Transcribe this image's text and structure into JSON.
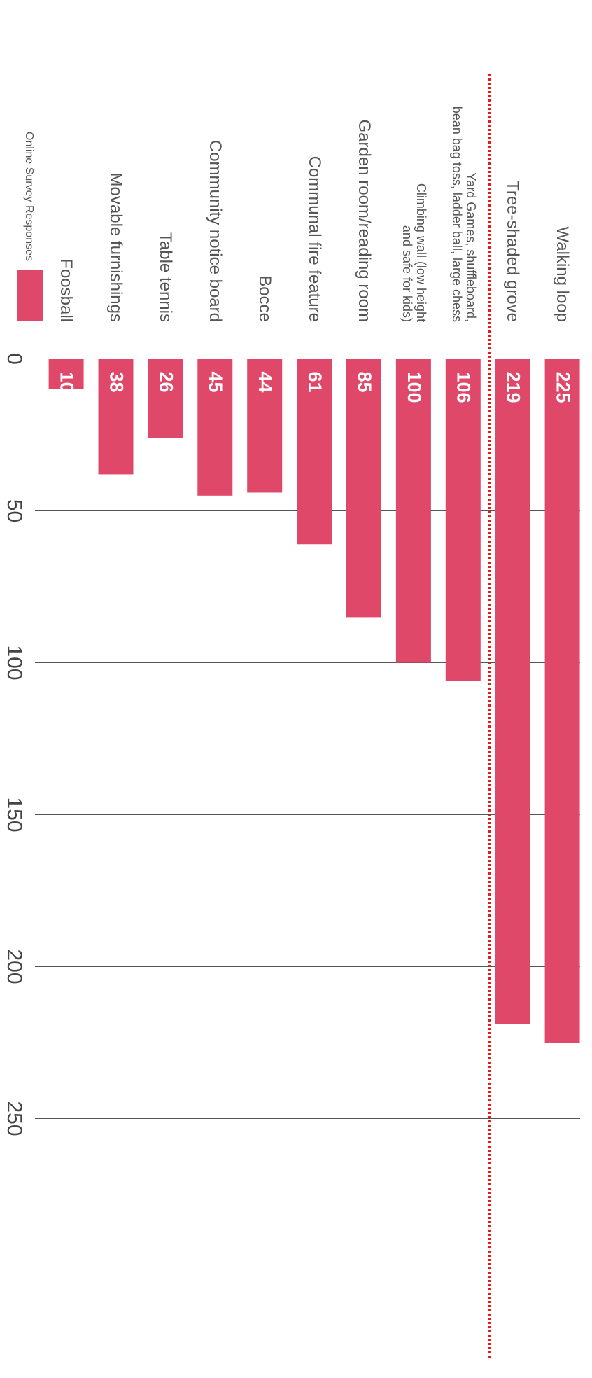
{
  "chart_data": {
    "type": "bar",
    "orientation": "horizontal",
    "categories": [
      "Walking loop",
      "Tree-shaded grove",
      "Yard Games, shuffleboard,\nbean bag toss, ladder ball, large chess",
      "Climbing wall (low height\nand safe for kids)",
      "Garden room/reading room",
      "Communal fire feature",
      "Bocce",
      "Community notice board",
      "Table tennis",
      "Movable furnishings",
      "Foosball"
    ],
    "series": [
      {
        "name": "Online Survey Responses",
        "color": "#e0486a",
        "values": [
          225,
          219,
          106,
          100,
          85,
          61,
          44,
          45,
          26,
          38,
          10
        ]
      }
    ],
    "ylim": [
      0,
      250
    ],
    "yticks": [
      0,
      50,
      100,
      150,
      200,
      250
    ],
    "grid": true
  }
}
